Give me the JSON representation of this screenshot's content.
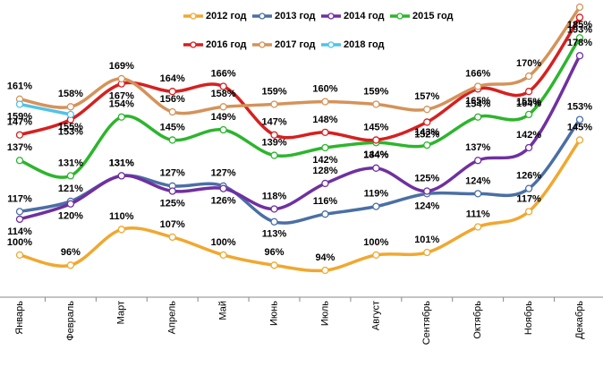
{
  "chart_data": {
    "type": "line",
    "categories": [
      "Январь",
      "Февраль",
      "Март",
      "Апрель",
      "Май",
      "Июнь",
      "Июль",
      "Август",
      "Сентябрь",
      "Октябрь",
      "Ноябрь",
      "Декабрь"
    ],
    "series": [
      {
        "name": "2012 год",
        "color": "#f0a830",
        "values": [
          100,
          96,
          110,
          107,
          100,
          96,
          94,
          100,
          101,
          111,
          117,
          145
        ],
        "value_labels": [
          "100%",
          "96%",
          "110%",
          "107%",
          "100%",
          "96%",
          "94%",
          "100%",
          "101%",
          "111%",
          "117%",
          "145%"
        ]
      },
      {
        "name": "2013 год",
        "color": "#4a6fa5",
        "values": [
          117,
          121,
          131,
          127,
          127,
          113,
          116,
          119,
          124,
          124,
          126,
          153
        ],
        "value_labels": [
          "117%",
          "121%",
          "131%",
          "127%",
          "127%",
          "113%",
          "116%",
          "119%",
          "124%",
          "124%",
          "126%",
          "153%"
        ]
      },
      {
        "name": "2014 год",
        "color": "#7030a0",
        "values": [
          114,
          120,
          131,
          125,
          126,
          118,
          128,
          134,
          125,
          137,
          142,
          178
        ],
        "value_labels": [
          "114%",
          "120%",
          "131%",
          "125%",
          "126%",
          "118%",
          "128%",
          "134%",
          "125%",
          "137%",
          "142%",
          "178%"
        ]
      },
      {
        "name": "2015 год",
        "color": "#2db52d",
        "values": [
          137,
          131,
          154,
          145,
          149,
          139,
          142,
          144,
          143,
          154,
          155,
          185
        ],
        "value_labels": [
          "137%",
          "131%",
          "154%",
          "145%",
          "149%",
          "139%",
          "142%",
          "144%",
          "143%",
          "154%",
          "155%",
          "185%"
        ]
      },
      {
        "name": "2016 год",
        "color": "#d62020",
        "values": [
          147,
          153,
          167,
          164,
          166,
          147,
          148,
          145,
          152,
          165,
          164,
          193
        ],
        "value_labels": [
          "147%",
          "153%",
          "167%",
          "164%",
          "166%",
          "147%",
          "148%",
          "145%",
          "152%",
          "165%",
          "164%",
          "193%"
        ]
      },
      {
        "name": "2017 год",
        "color": "#d4935a",
        "values": [
          161,
          158,
          169,
          156,
          158,
          159,
          160,
          159,
          157,
          166,
          170,
          197
        ],
        "value_labels": [
          "161%",
          "158%",
          "169%",
          "156%",
          "158%",
          "159%",
          "160%",
          "159%",
          "157%",
          "166%",
          "170%",
          "197%"
        ]
      },
      {
        "name": "2018 год",
        "color": "#4fc3e8",
        "values": [
          159,
          155,
          null,
          null,
          null,
          null,
          null,
          null,
          null,
          null,
          null,
          null
        ],
        "value_labels": [
          "159%",
          "155%",
          null,
          null,
          null,
          null,
          null,
          null,
          null,
          null,
          null,
          null
        ]
      }
    ]
  }
}
